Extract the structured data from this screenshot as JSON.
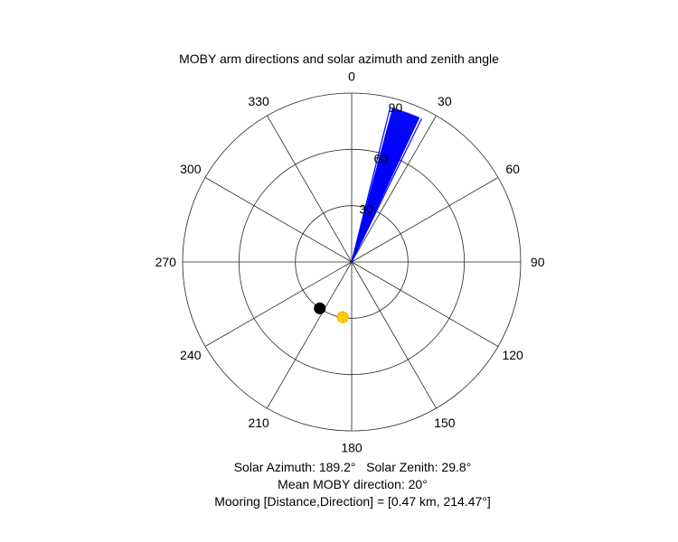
{
  "chart_data": {
    "type": "polar",
    "title": "MOBY arm directions and solar azimuth and zenith angle",
    "theta_direction": "clockwise",
    "theta_zero": "top",
    "theta_ticks": [
      "0",
      "30",
      "60",
      "90",
      "120",
      "150",
      "180",
      "210",
      "240",
      "270",
      "300",
      "330"
    ],
    "r_ticks": [
      "30",
      "60",
      "90"
    ],
    "r_max": 90,
    "grid": true,
    "series": [
      {
        "kind": "arm-lines",
        "color": "#0000ff",
        "line_from": [
          0,
          0
        ],
        "directions_deg": [
          14,
          15,
          15.5,
          16,
          16.5,
          17,
          17.5,
          18,
          18.5,
          19,
          19.5,
          20,
          20.5,
          21,
          21.5,
          22,
          22.5,
          23,
          23.5,
          24,
          24.5,
          25,
          26
        ],
        "r": 85
      },
      {
        "kind": "marker",
        "label": "sun",
        "color": "#ffd500",
        "azimuth_deg": 189.2,
        "zenith_deg": 29.8
      },
      {
        "kind": "marker",
        "label": "mooring",
        "color": "#000000",
        "azimuth_deg": 214.47,
        "r": 30
      }
    ]
  },
  "footer": {
    "line1_left": "Solar Azimuth: 189.2°",
    "line1_right": "Solar Zenith: 29.8°",
    "line2": "Mean MOBY direction: 20°",
    "line3": "Mooring [Distance,Direction] = [0.47 km, 214.47°]"
  }
}
